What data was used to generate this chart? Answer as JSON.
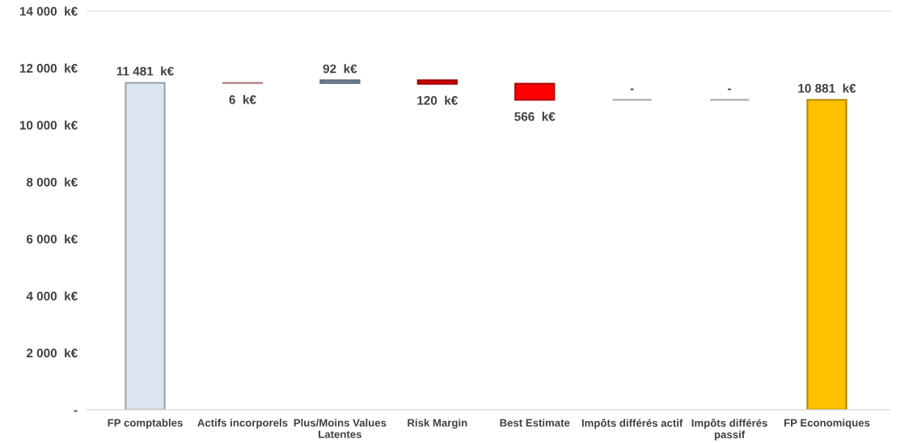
{
  "chart_data": {
    "type": "bar",
    "categories": [
      "FP comptables",
      "Actifs incorporels",
      "Plus/Moins Values Latentes",
      "Risk Margin",
      "Best Estimate",
      "Impôts différés actif",
      "Impôts différés passif",
      "FP Economiques"
    ],
    "values": [
      11481,
      -6,
      92,
      -120,
      -566,
      0,
      0,
      10881
    ],
    "base": [
      0,
      11481,
      11475,
      11567,
      11447,
      10881,
      10881,
      0
    ],
    "colors": [
      "#dce6f2",
      "#f4b6b6",
      "#8496b0",
      "#e00000",
      "#ff0000",
      "#a6a6a6",
      "#a6a6a6",
      "#ffc000"
    ],
    "value_labels": [
      "11 481  k€",
      "6  k€",
      "92  k€",
      "120  k€",
      "566  k€",
      "-",
      "-",
      "10 881  k€"
    ],
    "ylim": [
      0,
      14000
    ],
    "yticks": [
      {
        "value": 0,
        "label": "-"
      },
      {
        "value": 2000,
        "label": "2 000  k€"
      },
      {
        "value": 4000,
        "label": "4 000  k€"
      },
      {
        "value": 6000,
        "label": "6 000  k€"
      },
      {
        "value": 8000,
        "label": "8 000  k€"
      },
      {
        "value": 10000,
        "label": "10 000  k€"
      },
      {
        "value": 12000,
        "label": "12 000  k€"
      },
      {
        "value": 14000,
        "label": "14 000  k€"
      }
    ],
    "grid": false
  }
}
